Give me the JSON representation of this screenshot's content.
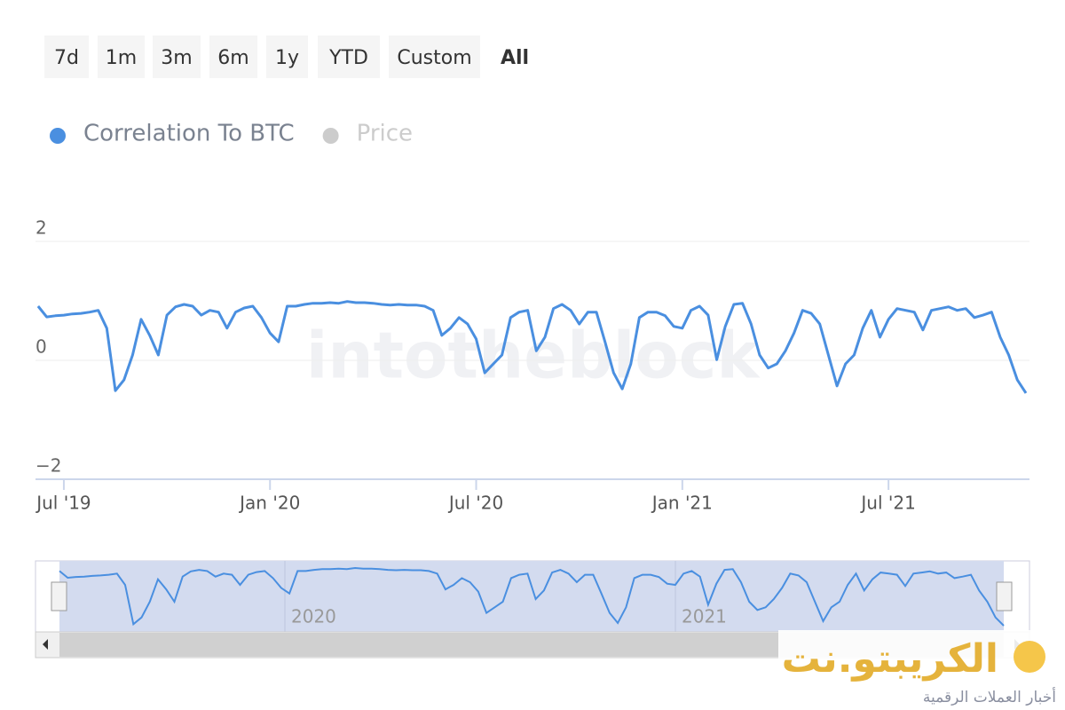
{
  "range_buttons": [
    "7d",
    "1m",
    "3m",
    "6m",
    "1y",
    "YTD",
    "Custom",
    "All"
  ],
  "selected_range": "All",
  "chart_data": {
    "type": "line",
    "watermark": "intotheblock",
    "categories": [
      null,
      null,
      null,
      "Jul '19",
      null,
      null,
      null,
      null,
      null,
      null,
      null,
      null,
      null,
      null,
      null,
      null,
      null,
      null,
      null,
      null,
      null,
      null,
      null,
      null,
      null,
      null,
      null,
      "Jan '20",
      null,
      null,
      null,
      null,
      null,
      null,
      null,
      null,
      null,
      null,
      null,
      null,
      null,
      null,
      null,
      null,
      null,
      null,
      null,
      null,
      null,
      null,
      null,
      "Jul '20",
      null,
      null,
      null,
      null,
      null,
      null,
      null,
      null,
      null,
      null,
      null,
      null,
      null,
      null,
      null,
      null,
      null,
      null,
      null,
      null,
      null,
      null,
      null,
      "Jan '21",
      null,
      null,
      null,
      null,
      null,
      null,
      null,
      null,
      null,
      null,
      null,
      null,
      null,
      null,
      null,
      null,
      null,
      null,
      null,
      null,
      null,
      null,
      null,
      "Jul '21",
      null,
      null,
      null,
      null,
      null,
      null,
      null,
      null,
      null,
      null,
      null,
      null,
      null,
      null,
      null,
      null
    ],
    "series": [
      {
        "name": "Correlation To BTC",
        "color": "#4a8fe0",
        "values": [
          0.91,
          0.73,
          0.75,
          0.76,
          0.78,
          0.79,
          0.81,
          0.84,
          0.54,
          -0.51,
          -0.33,
          0.09,
          0.69,
          0.42,
          0.09,
          0.76,
          0.9,
          0.94,
          0.91,
          0.76,
          0.84,
          0.81,
          0.54,
          0.81,
          0.88,
          0.91,
          0.72,
          0.46,
          0.31,
          0.91,
          0.91,
          0.94,
          0.96,
          0.96,
          0.97,
          0.96,
          0.99,
          0.97,
          0.97,
          0.96,
          0.94,
          0.93,
          0.94,
          0.93,
          0.93,
          0.91,
          0.84,
          0.42,
          0.54,
          0.72,
          0.61,
          0.36,
          -0.21,
          -0.06,
          0.09,
          0.72,
          0.81,
          0.84,
          0.16,
          0.39,
          0.87,
          0.94,
          0.84,
          0.61,
          0.81,
          0.81,
          0.31,
          -0.21,
          -0.48,
          -0.06,
          0.72,
          0.81,
          0.81,
          0.75,
          0.57,
          0.54,
          0.84,
          0.91,
          0.76,
          0.01,
          0.57,
          0.94,
          0.96,
          0.61,
          0.09,
          -0.13,
          -0.06,
          0.16,
          0.46,
          0.84,
          0.79,
          0.61,
          0.09,
          -0.43,
          -0.06,
          0.09,
          0.54,
          0.84,
          0.39,
          0.69,
          0.87,
          0.84,
          0.81,
          0.51,
          0.84,
          0.87,
          0.9,
          0.84,
          0.87,
          0.72,
          0.76,
          0.81,
          0.39,
          0.09,
          -0.33,
          -0.55
        ]
      },
      {
        "name": "Price",
        "color": "#cccccc",
        "visible": false
      }
    ],
    "ylim": [
      -2,
      2
    ],
    "yticks": [
      {
        "value": -2,
        "label": "−2"
      },
      0,
      2
    ],
    "grid": true,
    "navigator": {
      "labels": [
        "2020",
        "2021"
      ]
    }
  },
  "logo": {
    "title": "الكريبتو.نت",
    "subtitle": "أخبار العملات الرقمية"
  }
}
